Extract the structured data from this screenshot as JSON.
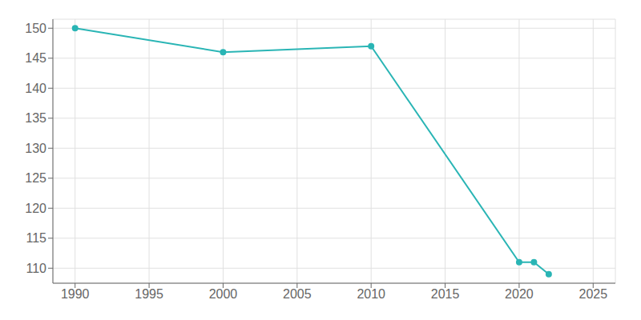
{
  "chart_data": {
    "type": "line",
    "x": [
      1990,
      2000,
      2010,
      2020,
      2021,
      2022
    ],
    "values": [
      150,
      146,
      147,
      111,
      111,
      109
    ],
    "color": "#2ab5b5",
    "marker": "circle",
    "xlim": [
      1988.5,
      2026.5
    ],
    "ylim": [
      107.5,
      151.5
    ],
    "xticks": [
      1990,
      1995,
      2000,
      2005,
      2010,
      2015,
      2020,
      2025
    ],
    "yticks": [
      110,
      115,
      120,
      125,
      130,
      135,
      140,
      145,
      150
    ],
    "grid": true
  }
}
